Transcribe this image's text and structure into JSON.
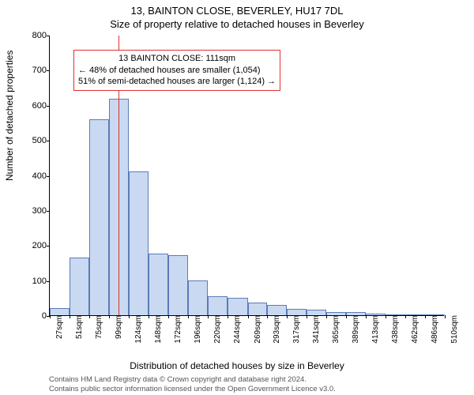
{
  "chart": {
    "type": "histogram",
    "title_main": "13, BAINTON CLOSE, BEVERLEY, HU17 7DL",
    "title_sub": "Size of property relative to detached houses in Beverley",
    "ylabel": "Number of detached properties",
    "xlabel": "Distribution of detached houses by size in Beverley",
    "background_color": "#ffffff",
    "bar_fill": "#c9d9f1",
    "bar_stroke": "#5b7bb8",
    "ref_line_color": "#e03030",
    "annotation_border": "#e03030",
    "ylim": [
      0,
      800
    ],
    "ytick_step": 100,
    "ref_value": 111,
    "xtick_categories": [
      "27sqm",
      "51sqm",
      "75sqm",
      "99sqm",
      "124sqm",
      "148sqm",
      "172sqm",
      "196sqm",
      "220sqm",
      "244sqm",
      "269sqm",
      "293sqm",
      "317sqm",
      "341sqm",
      "365sqm",
      "389sqm",
      "413sqm",
      "438sqm",
      "462sqm",
      "486sqm",
      "510sqm"
    ],
    "bar_starts": [
      27,
      51,
      75,
      99,
      124,
      148,
      172,
      196,
      220,
      244,
      269,
      293,
      317,
      341,
      365,
      389,
      413,
      438,
      462,
      486
    ],
    "bar_end": 510,
    "values": [
      20,
      165,
      560,
      618,
      410,
      175,
      172,
      100,
      55,
      50,
      35,
      30,
      18,
      15,
      10,
      8,
      5,
      0,
      0,
      3
    ],
    "annotation": {
      "line1": "13 BAINTON CLOSE: 111sqm",
      "line2": "← 48% of detached houses are smaller (1,054)",
      "line3": "51% of semi-detached houses are larger (1,124) →"
    },
    "footnote": {
      "line1": "Contains HM Land Registry data © Crown copyright and database right 2024.",
      "line2": "Contains public sector information licensed under the Open Government Licence v3.0."
    },
    "tick_fontsize": 11,
    "label_fontsize": 12,
    "title_fontsize": 13
  }
}
